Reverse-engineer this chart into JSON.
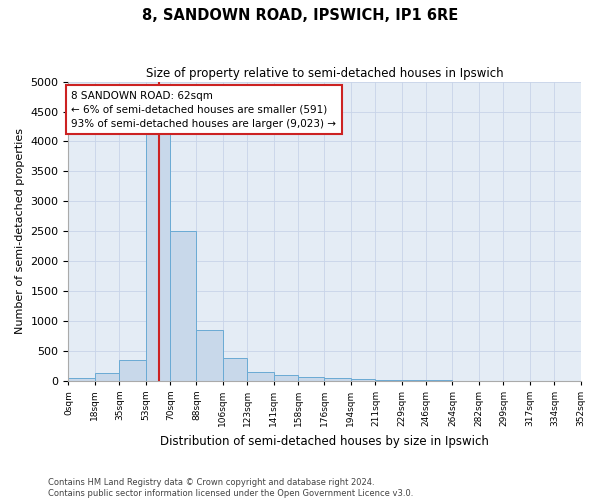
{
  "title": "8, SANDOWN ROAD, IPSWICH, IP1 6RE",
  "subtitle": "Size of property relative to semi-detached houses in Ipswich",
  "xlabel": "Distribution of semi-detached houses by size in Ipswich",
  "ylabel": "Number of semi-detached properties",
  "footer_line1": "Contains HM Land Registry data © Crown copyright and database right 2024.",
  "footer_line2": "Contains public sector information licensed under the Open Government Licence v3.0.",
  "annotation_title": "8 SANDOWN ROAD: 62sqm",
  "annotation_line1": "← 6% of semi-detached houses are smaller (591)",
  "annotation_line2": "93% of semi-detached houses are larger (9,023) →",
  "property_size": 62,
  "bin_edges": [
    0,
    18,
    35,
    53,
    70,
    88,
    106,
    123,
    141,
    158,
    176,
    194,
    211,
    229,
    246,
    264,
    282,
    299,
    317,
    334,
    352
  ],
  "bar_heights": [
    40,
    130,
    340,
    4200,
    2500,
    850,
    380,
    150,
    100,
    65,
    50,
    30,
    18,
    10,
    5,
    4,
    4,
    3,
    3,
    2
  ],
  "bar_color": "#c8d8ea",
  "bar_edge_color": "#6aaad4",
  "vline_color": "#cc2222",
  "annotation_box_color": "#cc2222",
  "background_color": "#ffffff",
  "plot_bg_color": "#e4ecf5",
  "grid_color": "#c8d4e8",
  "ylim": [
    0,
    5000
  ],
  "yticks": [
    0,
    500,
    1000,
    1500,
    2000,
    2500,
    3000,
    3500,
    4000,
    4500,
    5000
  ]
}
